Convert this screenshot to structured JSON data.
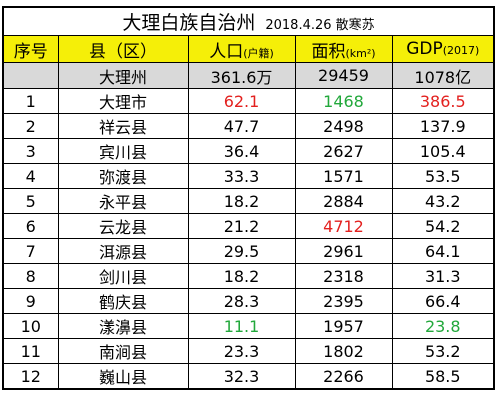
{
  "title": {
    "main": "大理白族自治州",
    "sub": "2018.4.26 散寒苏"
  },
  "headers": {
    "index": "序号",
    "county": "县（区）",
    "population": "人口",
    "population_unit": "(户籍)",
    "area": "面积",
    "area_unit": "(km²)",
    "gdp": "GDP",
    "gdp_unit": "(2017)"
  },
  "total": {
    "name": "大理州",
    "population": "361.6万",
    "area": "29459",
    "gdp": "1078亿"
  },
  "highlight_colors": {
    "red": "#e3211f",
    "green": "#22a83b",
    "header_bg": "#f5ef08",
    "total_bg": "#d9d9d9"
  },
  "rows": [
    {
      "index": "1",
      "name": "大理市",
      "population": "62.1",
      "area": "1468",
      "gdp": "386.5",
      "pop_color": "red",
      "area_color": "green",
      "gdp_color": "red"
    },
    {
      "index": "2",
      "name": "祥云县",
      "population": "47.7",
      "area": "2498",
      "gdp": "137.9"
    },
    {
      "index": "3",
      "name": "宾川县",
      "population": "36.4",
      "area": "2627",
      "gdp": "105.4"
    },
    {
      "index": "4",
      "name": "弥渡县",
      "population": "33.3",
      "area": "1571",
      "gdp": "53.5"
    },
    {
      "index": "5",
      "name": "永平县",
      "population": "18.2",
      "area": "2884",
      "gdp": "43.2"
    },
    {
      "index": "6",
      "name": "云龙县",
      "population": "21.2",
      "area": "4712",
      "gdp": "54.2",
      "area_color": "red"
    },
    {
      "index": "7",
      "name": "洱源县",
      "population": "29.5",
      "area": "2961",
      "gdp": "64.1"
    },
    {
      "index": "8",
      "name": "剑川县",
      "population": "18.2",
      "area": "2318",
      "gdp": "31.3"
    },
    {
      "index": "9",
      "name": "鹤庆县",
      "population": "28.3",
      "area": "2395",
      "gdp": "66.4"
    },
    {
      "index": "10",
      "name": "漾濞县",
      "population": "11.1",
      "area": "1957",
      "gdp": "23.8",
      "pop_color": "green",
      "gdp_color": "green"
    },
    {
      "index": "11",
      "name": "南涧县",
      "population": "23.3",
      "area": "1802",
      "gdp": "53.2"
    },
    {
      "index": "12",
      "name": "巍山县",
      "population": "32.3",
      "area": "2266",
      "gdp": "58.5"
    }
  ]
}
